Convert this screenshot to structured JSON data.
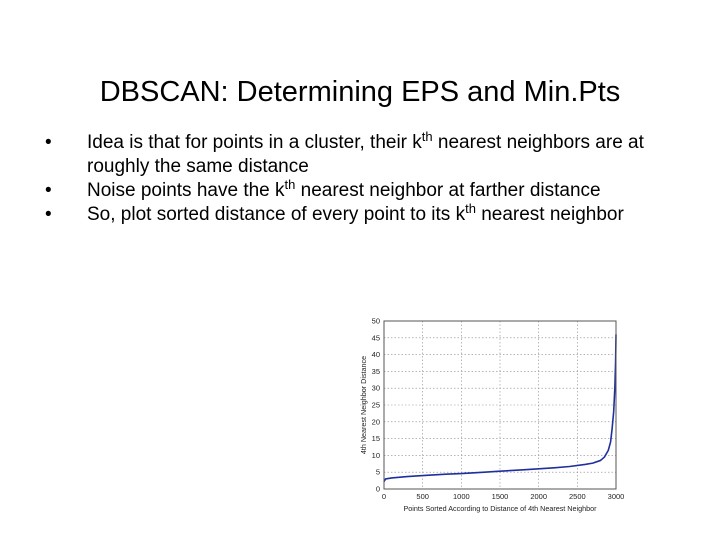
{
  "slide": {
    "title": "DBSCAN: Determining EPS and Min.Pts",
    "bullets": [
      {
        "marker": "•",
        "parts": [
          "Idea is that for points in a cluster, their k",
          "th",
          " nearest neighbors are at roughly the same distance"
        ]
      },
      {
        "marker": "•",
        "parts": [
          "Noise points have the k",
          "th",
          " nearest neighbor at farther distance"
        ]
      },
      {
        "marker": "•",
        "parts": [
          "So, plot sorted distance of every point to its k",
          "th",
          " nearest neighbor"
        ]
      }
    ]
  },
  "chart_data": {
    "type": "line",
    "title": "",
    "xlabel": "Points Sorted According to Distance of 4th Nearest Neighbor",
    "ylabel": "4th Nearest Neighbor Distance",
    "xlim": [
      0,
      3000
    ],
    "ylim": [
      0,
      50
    ],
    "xticks": [
      0,
      500,
      1000,
      1500,
      2000,
      2500,
      3000
    ],
    "yticks": [
      0,
      5,
      10,
      15,
      20,
      25,
      30,
      35,
      40,
      45,
      50
    ],
    "grid": true,
    "line_color": "#1f2f9e",
    "series": [
      {
        "x": [
          0,
          20,
          100,
          300,
          500,
          800,
          1000,
          1300,
          1500,
          1800,
          2000,
          2200,
          2400,
          2600,
          2700,
          2800,
          2850,
          2900,
          2930,
          2950,
          2970,
          2985,
          2995,
          3000
        ],
        "y": [
          2.2,
          3.0,
          3.3,
          3.7,
          4.0,
          4.4,
          4.6,
          5.0,
          5.3,
          5.7,
          6.0,
          6.3,
          6.7,
          7.3,
          7.7,
          8.5,
          9.5,
          11.5,
          14.0,
          18.0,
          23.0,
          30.0,
          38.0,
          46.0
        ]
      }
    ]
  }
}
